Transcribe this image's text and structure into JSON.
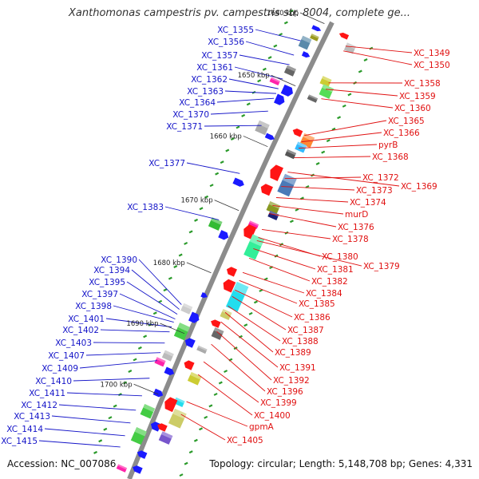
{
  "title": "Xanthomonas campestris pv. campestris str. 8004, complete ge...",
  "accession": "Accession: NC_007086",
  "topology": "Topology: circular; Length: 5,148,708 bp; Genes: 4,331",
  "colors": {
    "backbone": "#8c8c8c",
    "forward_label": "#1414c8",
    "reverse_label": "#e01010",
    "forward_gene": "#1a1aff",
    "reverse_gene": "#ff1414",
    "tick": "#2a9a2a"
  },
  "positions": [
    {
      "label": "1640 kbp"
    },
    {
      "label": "1650 kbp"
    },
    {
      "label": "1660 kbp"
    },
    {
      "label": "1670 kbp"
    },
    {
      "label": "1680 kbp"
    },
    {
      "label": "1690 kbp"
    },
    {
      "label": "1700 kbp"
    }
  ],
  "forward_labels": [
    "XC_1355",
    "XC_1356",
    "XC_1357",
    "XC_1361",
    "XC_1362",
    "XC_1363",
    "XC_1364",
    "XC_1370",
    "XC_1371",
    "XC_1377",
    "XC_1383",
    "XC_1390",
    "XC_1394",
    "XC_1395",
    "XC_1397",
    "XC_1398",
    "XC_1401",
    "XC_1402",
    "XC_1403",
    "XC_1407",
    "XC_1409",
    "XC_1410",
    "XC_1411",
    "XC_1412",
    "XC_1413",
    "XC_1414",
    "XC_1415"
  ],
  "reverse_labels": [
    "XC_1349",
    "XC_1350",
    "XC_1358",
    "XC_1359",
    "XC_1360",
    "XC_1365",
    "XC_1366",
    "pyrB",
    "XC_1368",
    "XC_1369",
    "XC_1372",
    "XC_1373",
    "XC_1374",
    "murD",
    "XC_1376",
    "XC_1378",
    "XC_1380",
    "XC_1379",
    "XC_1381",
    "XC_1382",
    "XC_1384",
    "XC_1385",
    "XC_1386",
    "XC_1387",
    "XC_1388",
    "XC_1389",
    "XC_1391",
    "XC_1392",
    "XC_1396",
    "XC_1399",
    "XC_1400",
    "gpmA",
    "XC_1405"
  ]
}
